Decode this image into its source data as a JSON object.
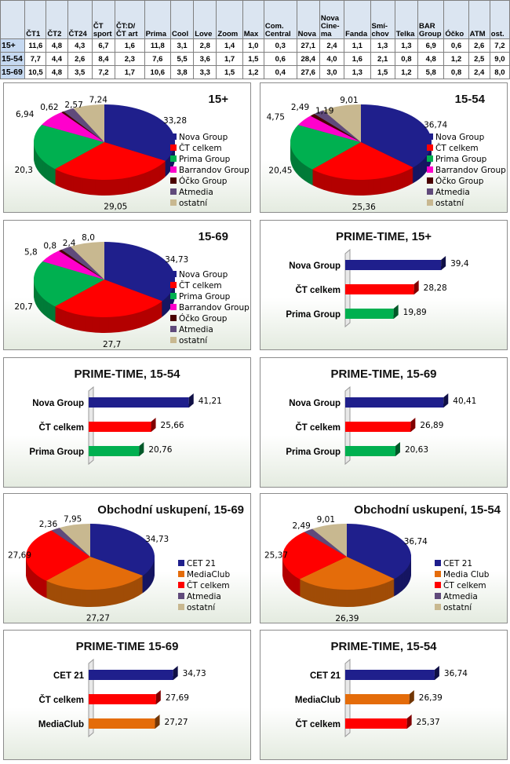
{
  "table": {
    "headers": [
      "",
      "ČT1",
      "ČT2",
      "ČT24",
      "ČT sport",
      "ČT:D/ČT art",
      "Prima",
      "Cool",
      "Love",
      "Zoom",
      "Max",
      "Com. Central",
      "Nova",
      "Nova Cine-ma",
      "Fanda",
      "Smí-chov",
      "Telka",
      "BAR Group",
      "Óčko",
      "ATM",
      "ost."
    ],
    "rows": [
      [
        "15+",
        "11,6",
        "4,8",
        "4,3",
        "6,7",
        "1,6",
        "11,8",
        "3,1",
        "2,8",
        "1,4",
        "1,0",
        "0,3",
        "27,1",
        "2,4",
        "1,1",
        "1,3",
        "1,3",
        "6,9",
        "0,6",
        "2,6",
        "7,2"
      ],
      [
        "15-54",
        "7,7",
        "4,4",
        "2,6",
        "8,4",
        "2,3",
        "7,6",
        "5,5",
        "3,6",
        "1,7",
        "1,5",
        "0,6",
        "28,4",
        "4,0",
        "1,6",
        "2,1",
        "0,8",
        "4,8",
        "1,2",
        "2,5",
        "9,0"
      ],
      [
        "15-69",
        "10,5",
        "4,8",
        "3,5",
        "7,2",
        "1,7",
        "10,6",
        "3,8",
        "3,3",
        "1,5",
        "1,2",
        "0,4",
        "27,6",
        "3,0",
        "1,3",
        "1,5",
        "1,2",
        "5,8",
        "0,8",
        "2,4",
        "8,0"
      ]
    ]
  },
  "colors": {
    "Nova Group": "#1f1f8c",
    "ČT celkem": "#ff0000",
    "Prima Group": "#00b050",
    "Barrandov Group": "#ff00cc",
    "Óčko Group": "#4a0000",
    "Atmedia": "#604a7b",
    "ostatní": "#c8b890",
    "CET 21": "#1f1f8c",
    "MediaClub": "#e46c0a",
    "Media Club": "#e46c0a"
  },
  "chart_data": [
    {
      "type": "pie",
      "title": "15+",
      "categories": [
        "Nova Group",
        "ČT celkem",
        "Prima Group",
        "Barrandov Group",
        "Óčko Group",
        "Atmedia",
        "ostatní"
      ],
      "values": [
        33.28,
        29.05,
        20.3,
        6.94,
        0.62,
        2.57,
        7.24
      ],
      "labels": [
        "33,28",
        "29,05",
        "20,3",
        "6,94",
        "0,62",
        "2,57",
        "7,24"
      ]
    },
    {
      "type": "pie",
      "title": "15-54",
      "categories": [
        "Nova Group",
        "ČT celkem",
        "Prima Group",
        "Barrandov Group",
        "Óčko Group",
        "Atmedia",
        "ostatní"
      ],
      "values": [
        36.74,
        25.36,
        20.45,
        4.75,
        1.19,
        2.49,
        9.01
      ],
      "labels": [
        "36,74",
        "25,36",
        "20,45",
        "4,75",
        "1,19",
        "2,49",
        "9,01"
      ]
    },
    {
      "type": "pie",
      "title": "15-69",
      "categories": [
        "Nova Group",
        "ČT celkem",
        "Prima Group",
        "Barrandov Group",
        "Óčko Group",
        "Atmedia",
        "ostatní"
      ],
      "values": [
        34.73,
        27.7,
        20.7,
        5.8,
        0.8,
        2.4,
        8.0
      ],
      "labels": [
        "34,73",
        "27,7",
        "20,7",
        "5,8",
        "0,8",
        "2,4",
        "8,0"
      ]
    },
    {
      "type": "bar",
      "title": "PRIME-TIME, 15+",
      "categories": [
        "Nova Group",
        "ČT celkem",
        "Prima Group"
      ],
      "values": [
        39.4,
        28.28,
        19.89
      ],
      "labels": [
        "39,4",
        "28,28",
        "19,89"
      ]
    },
    {
      "type": "bar",
      "title": "PRIME-TIME, 15-54",
      "categories": [
        "Nova Group",
        "ČT celkem",
        "Prima Group"
      ],
      "values": [
        41.21,
        25.66,
        20.76
      ],
      "labels": [
        "41,21",
        "25,66",
        "20,76"
      ]
    },
    {
      "type": "bar",
      "title": "PRIME-TIME, 15-69",
      "categories": [
        "Nova Group",
        "ČT celkem",
        "Prima Group"
      ],
      "values": [
        40.41,
        26.89,
        20.63
      ],
      "labels": [
        "40,41",
        "26,89",
        "20,63"
      ]
    },
    {
      "type": "pie",
      "title": "Obchodní uskupení, 15-69",
      "categories": [
        "CET 21",
        "MediaClub",
        "ČT celkem",
        "Atmedia",
        "ostatní"
      ],
      "values": [
        34.73,
        27.27,
        27.69,
        2.36,
        7.95
      ],
      "labels": [
        "34,73",
        "27,27",
        "27,69",
        "2,36",
        "7,95"
      ]
    },
    {
      "type": "pie",
      "title": "Obchodní uskupení, 15-54",
      "categories": [
        "CET 21",
        "Media Club",
        "ČT celkem",
        "Atmedia",
        "ostatní"
      ],
      "values": [
        36.74,
        26.39,
        25.37,
        2.49,
        9.01
      ],
      "labels": [
        "36,74",
        "26,39",
        "25,37",
        "2,49",
        "9,01"
      ]
    },
    {
      "type": "bar",
      "title": "PRIME-TIME 15-69",
      "categories": [
        "CET 21",
        "ČT celkem",
        "MediaClub"
      ],
      "values": [
        34.73,
        27.69,
        27.27
      ],
      "labels": [
        "34,73",
        "27,69",
        "27,27"
      ]
    },
    {
      "type": "bar",
      "title": "PRIME-TIME, 15-54",
      "categories": [
        "CET 21",
        "MediaClub",
        "ČT celkem"
      ],
      "values": [
        36.74,
        26.39,
        25.37
      ],
      "labels": [
        "36,74",
        "26,39",
        "25,37"
      ]
    }
  ]
}
